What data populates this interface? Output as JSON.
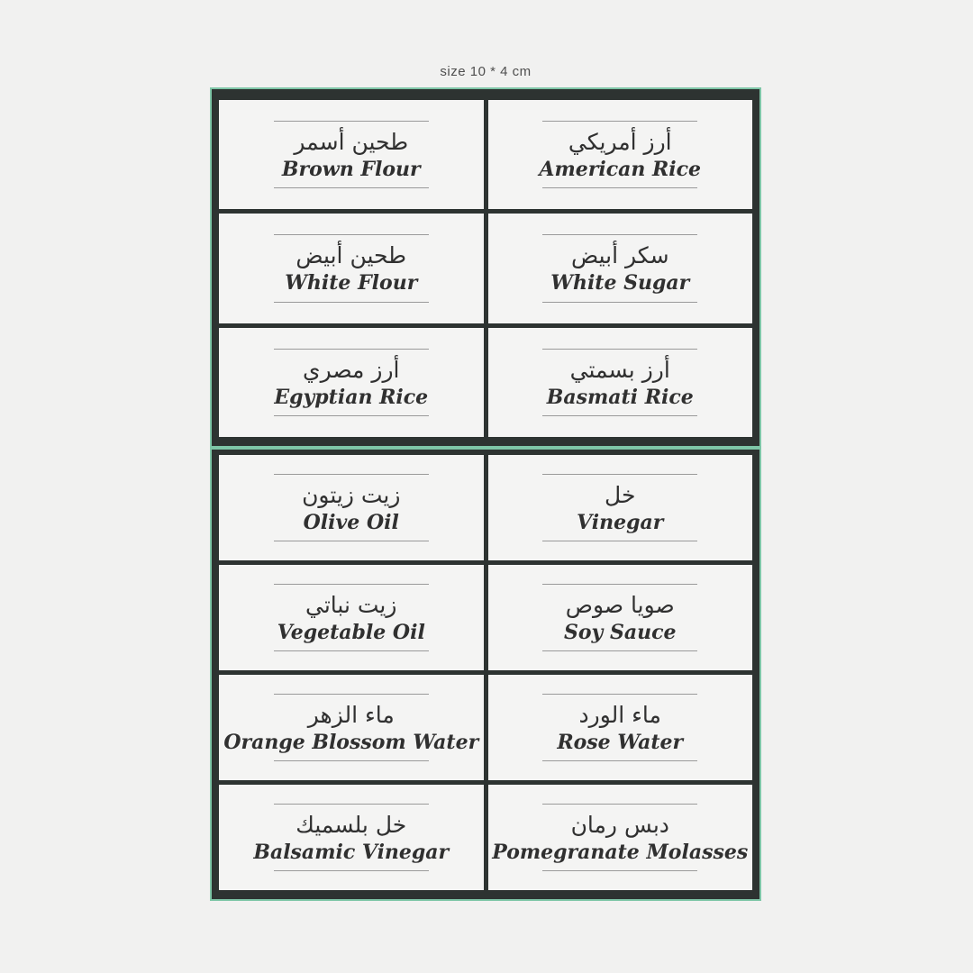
{
  "page": {
    "size_note": "size 10 * 4 cm",
    "background": "#f1f1f0"
  },
  "colors": {
    "sheet_frame": "#2d3331",
    "mint_outline": "#7ec6a7",
    "cell_background": "#f4f4f3",
    "label_text": "#303030",
    "rule_line": "#9a9a9a",
    "note_text": "#4f4f4f"
  },
  "sheets": [
    {
      "name": "sheet-top",
      "rows": 3,
      "cells": [
        {
          "arabic": "طحين أسمر",
          "english": "Brown Flour"
        },
        {
          "arabic": "أرز أمريكي",
          "english": "American Rice"
        },
        {
          "arabic": "طحين أبيض",
          "english": "White Flour"
        },
        {
          "arabic": "سكر أبيض",
          "english": "White Sugar"
        },
        {
          "arabic": "أرز مصري",
          "english": "Egyptian Rice"
        },
        {
          "arabic": "أرز بسمتي",
          "english": "Basmati Rice"
        }
      ]
    },
    {
      "name": "sheet-bottom",
      "rows": 4,
      "cells": [
        {
          "arabic": "زيت زيتون",
          "english": "Olive Oil"
        },
        {
          "arabic": "خل",
          "english": "Vinegar"
        },
        {
          "arabic": "زيت نباتي",
          "english": "Vegetable Oil"
        },
        {
          "arabic": "صويا صوص",
          "english": "Soy Sauce"
        },
        {
          "arabic": "ماء الزهر",
          "english": "Orange Blossom Water"
        },
        {
          "arabic": "ماء الورد",
          "english": "Rose Water"
        },
        {
          "arabic": "خل بلسميك",
          "english": "Balsamic Vinegar"
        },
        {
          "arabic": "دبس رمان",
          "english": "Pomegranate Molasses"
        }
      ]
    }
  ]
}
